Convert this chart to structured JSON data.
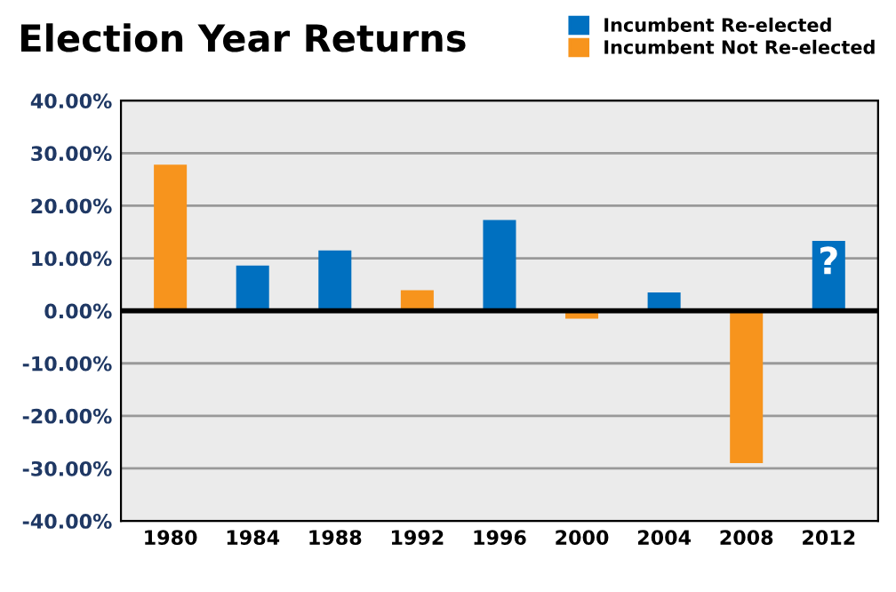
{
  "chart_data": {
    "type": "bar",
    "title": "Election Year Returns",
    "categories": [
      "1980",
      "1984",
      "1988",
      "1992",
      "1996",
      "2000",
      "2004",
      "2008",
      "2012"
    ],
    "series": [
      {
        "name": "Incumbent Re-elected",
        "color": "#0070c0",
        "values": [
          null,
          8.6,
          11.5,
          null,
          17.3,
          null,
          3.5,
          null,
          13.3
        ]
      },
      {
        "name": "Incumbent Not Re-elected",
        "color": "#f7941d",
        "values": [
          27.8,
          null,
          null,
          3.9,
          null,
          -1.5,
          null,
          -29.0,
          null
        ]
      }
    ],
    "ylim": [
      -40,
      40
    ],
    "yticks": [
      {
        "value": 40,
        "label": "40.00%"
      },
      {
        "value": 30,
        "label": "30.00%"
      },
      {
        "value": 20,
        "label": "20.00%"
      },
      {
        "value": 10,
        "label": "10.00%"
      },
      {
        "value": 0,
        "label": "0.00%"
      },
      {
        "value": -10,
        "label": "-10.00%"
      },
      {
        "value": -20,
        "label": "-20.00%"
      },
      {
        "value": -30,
        "label": "-30.00%"
      },
      {
        "value": -40,
        "label": "-40.00%"
      }
    ],
    "ref_lines": [
      {
        "axis": "y",
        "value": 0,
        "color": "#000000"
      }
    ],
    "annotations": [
      {
        "text": "?",
        "x": "2012",
        "y": 13.3
      }
    ],
    "grid": "y",
    "legend": "top right"
  }
}
